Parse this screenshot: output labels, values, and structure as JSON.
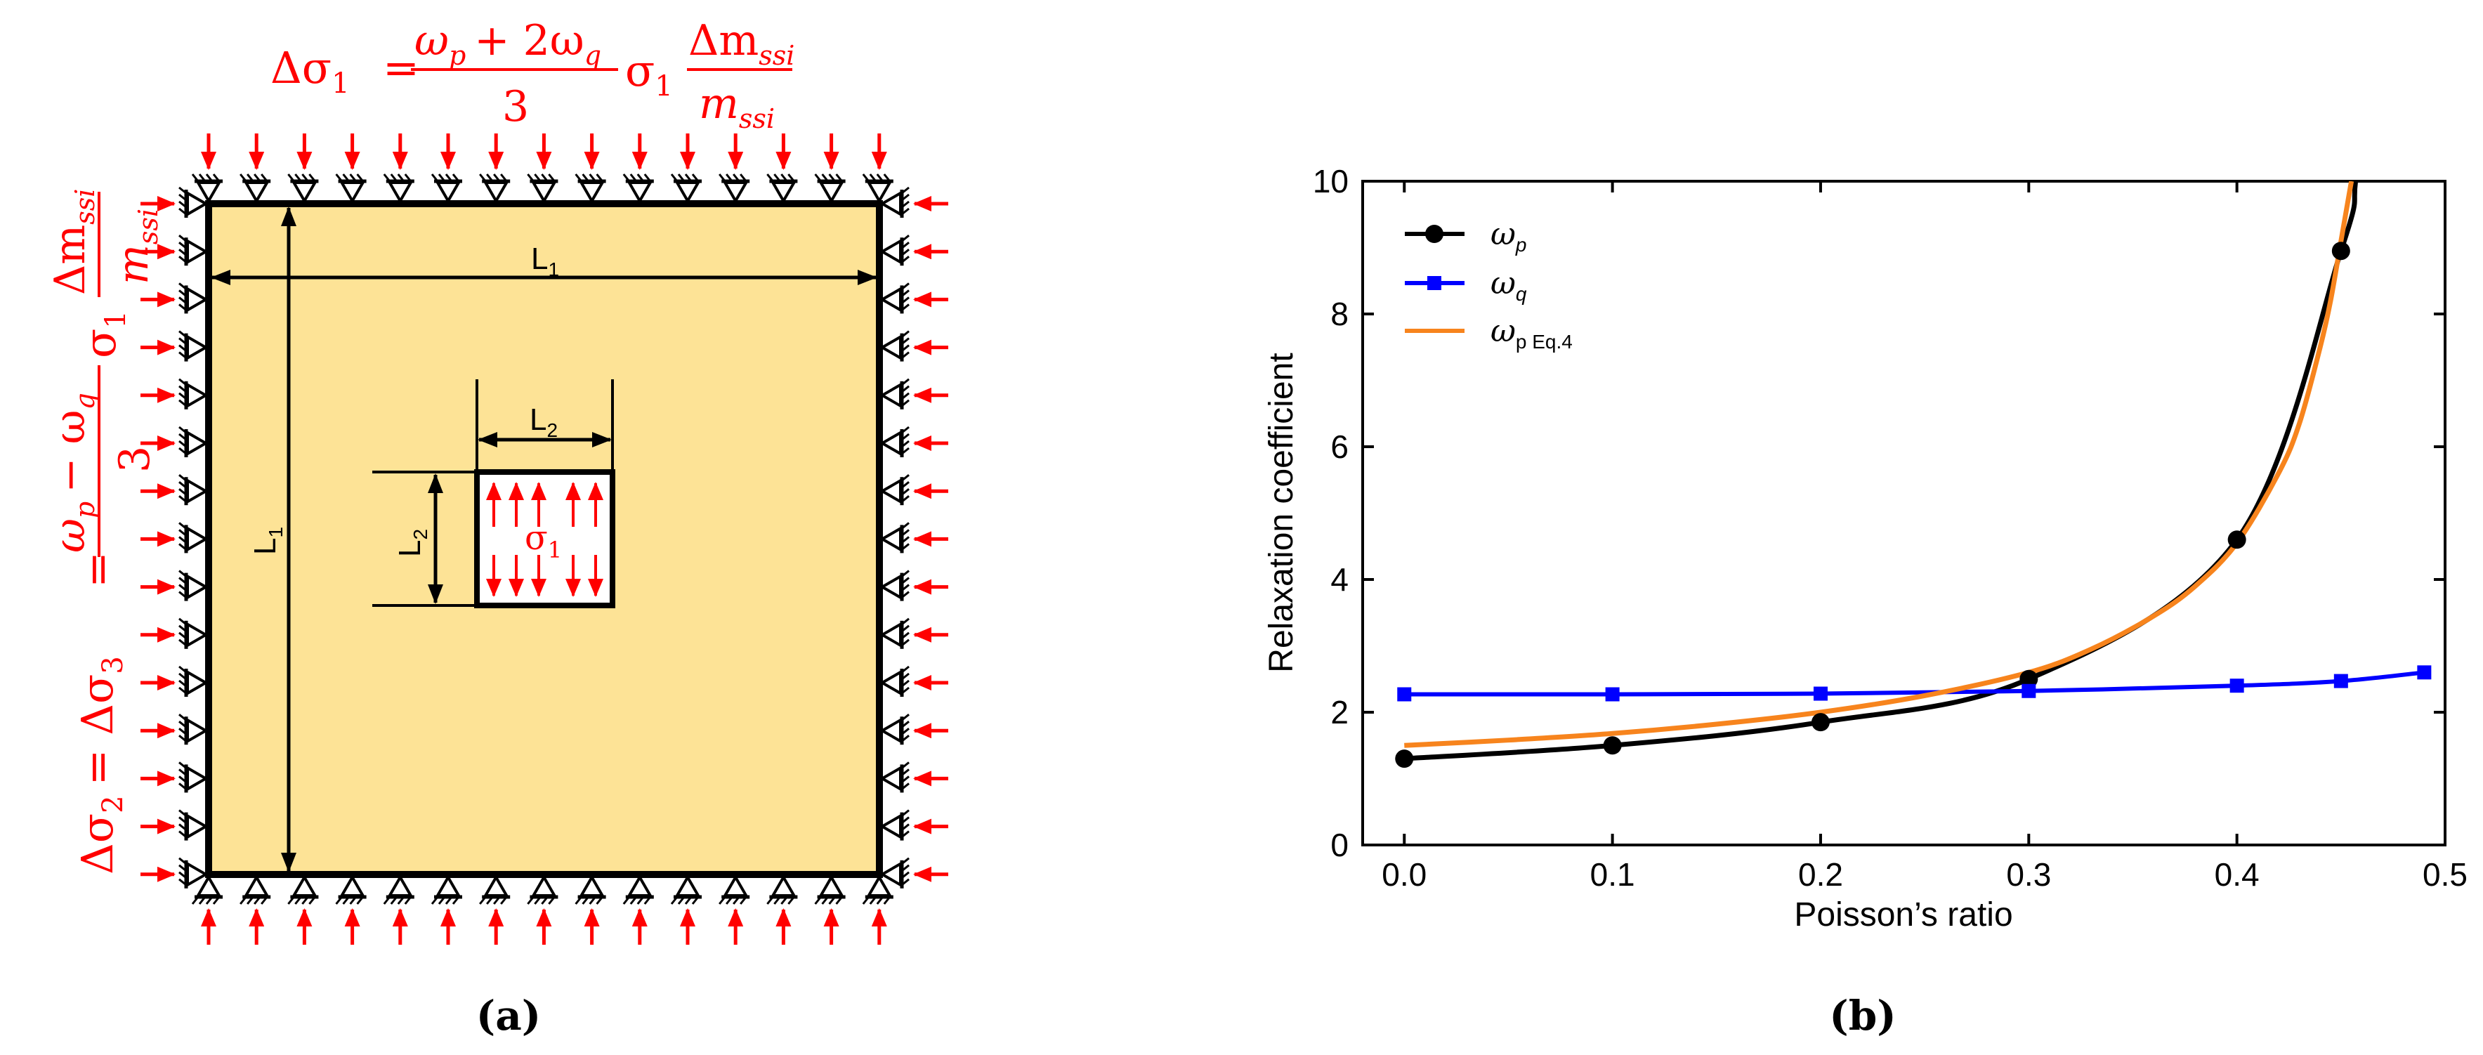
{
  "panel_a": {
    "label": "(a)",
    "eq_top": {
      "lhs": "Δσ",
      "lhs_sub": "1",
      "equals": "=",
      "num_a": "ω",
      "num_a_sub": "p",
      "num_plus": "+ 2ω",
      "num_b_sub": "q",
      "den": "3",
      "sigma": "σ",
      "sigma_sub": "1",
      "frac2_num": "Δm",
      "frac2_num_sub": "ssi",
      "frac2_den": "m",
      "frac2_den_sub": "ssi"
    },
    "eq_left": {
      "lhs": "Δσ",
      "lhs_sub": "2",
      "mid": "= Δσ",
      "mid_sub": "3",
      "equals": "=",
      "num_a": "ω",
      "num_a_sub": "p",
      "num_minus": "− ω",
      "num_b_sub": "q",
      "den": "3",
      "sigma": "σ",
      "sigma_sub": "1",
      "frac2_num": "Δm",
      "frac2_num_sub": "ssi",
      "frac2_den": "m",
      "frac2_den_sub": "ssi"
    },
    "dim_l1_h": "L",
    "dim_l1_h_sub": "1",
    "dim_l1_v": "L",
    "dim_l1_v_sub": "1",
    "dim_l2_h": "L",
    "dim_l2_h_sub": "2",
    "dim_l2_v": "L",
    "dim_l2_v_sub": "2",
    "inner_stress": "σ",
    "inner_stress_sub": "1",
    "colors": {
      "block": "#fde396",
      "load": "#ff0000",
      "line": "#000000"
    }
  },
  "panel_b": {
    "label": "(b)",
    "chart_data": {
      "type": "line",
      "xlabel": "Poisson’s ratio",
      "ylabel": "Relaxation coefficient",
      "xlim": [
        -0.02,
        0.5
      ],
      "ylim": [
        0,
        10
      ],
      "xticks": [
        0.0,
        0.1,
        0.2,
        0.3,
        0.4,
        0.5
      ],
      "xtick_labels": [
        "0.0",
        "0.1",
        "0.2",
        "0.3",
        "0.4",
        "0.5"
      ],
      "yticks": [
        0,
        2,
        4,
        6,
        8,
        10
      ],
      "ytick_labels": [
        "0",
        "2",
        "4",
        "6",
        "8",
        "10"
      ],
      "legend_position": "top-left",
      "series": [
        {
          "name": "ω",
          "name_sub": "p",
          "marker": "circle",
          "color": "#000000",
          "x": [
            0.0,
            0.1,
            0.2,
            0.3,
            0.4,
            0.45
          ],
          "values": [
            1.3,
            1.5,
            1.85,
            2.5,
            4.6,
            8.95
          ]
        },
        {
          "name": "ω",
          "name_sub": "q",
          "marker": "square",
          "color": "#0000ff",
          "x": [
            0.0,
            0.1,
            0.2,
            0.3,
            0.4,
            0.45,
            0.49
          ],
          "values": [
            2.27,
            2.27,
            2.28,
            2.32,
            2.4,
            2.47,
            2.6
          ]
        },
        {
          "name": "ω",
          "name_sub": "p Eq.4",
          "marker": "none",
          "color": "#f7841d",
          "formula_note": "fitted curve",
          "x": [
            0.0,
            0.05,
            0.1,
            0.15,
            0.2,
            0.25,
            0.3,
            0.33,
            0.36,
            0.38,
            0.4,
            0.42,
            0.43,
            0.44,
            0.445,
            0.45,
            0.455
          ],
          "values": [
            1.5,
            1.58,
            1.68,
            1.82,
            2.0,
            2.25,
            2.6,
            2.95,
            3.45,
            3.9,
            4.55,
            5.6,
            6.35,
            7.5,
            8.2,
            9.1,
            10.0
          ]
        }
      ]
    }
  }
}
